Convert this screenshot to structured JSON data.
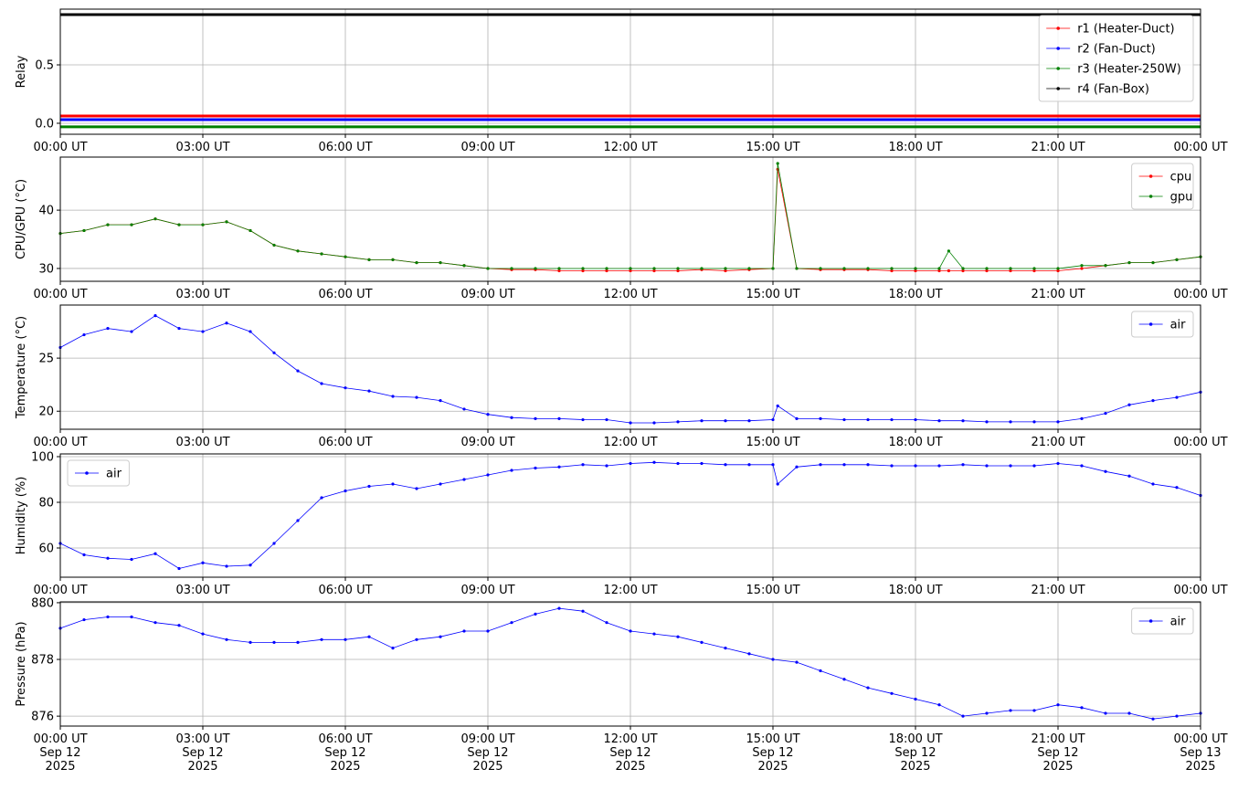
{
  "chart_data": [
    {
      "type": "line",
      "ylabel": "Relay",
      "x": [
        0,
        24
      ],
      "xlim": [
        0,
        24
      ],
      "xticks": [
        {
          "value": 0,
          "label": "00:00 UT"
        },
        {
          "value": 3,
          "label": "03:00 UT"
        },
        {
          "value": 6,
          "label": "06:00 UT"
        },
        {
          "value": 9,
          "label": "09:00 UT"
        },
        {
          "value": 12,
          "label": "12:00 UT"
        },
        {
          "value": 15,
          "label": "15:00 UT"
        },
        {
          "value": 18,
          "label": "18:00 UT"
        },
        {
          "value": 21,
          "label": "21:00 UT"
        },
        {
          "value": 24,
          "label": "00:00 UT"
        }
      ],
      "ylim": [
        -0.094,
        0.977
      ],
      "yticks": [
        {
          "value": 0,
          "label": "0.0"
        },
        {
          "value": 0.5,
          "label": "0.5"
        }
      ],
      "grid": true,
      "legend": "upper right",
      "series": [
        {
          "name": "r1 (Heater-Duct)",
          "color": "#ff0000",
          "values": [
            0.0625,
            0.0625
          ]
        },
        {
          "name": "r2 (Fan-Duct)",
          "color": "#0000ff",
          "values": [
            0.031,
            0.031
          ]
        },
        {
          "name": "r3 (Heater-250W)",
          "color": "#008000",
          "values": [
            -0.031,
            -0.031
          ]
        },
        {
          "name": "r4 (Fan-Box)",
          "color": "#000000",
          "values": [
            0.93,
            0.93
          ]
        }
      ]
    },
    {
      "type": "line",
      "ylabel": "CPU/GPU (°C)",
      "x": [
        0,
        0.5,
        1,
        1.5,
        2,
        2.5,
        3,
        3.5,
        4,
        4.5,
        5,
        5.5,
        6,
        6.5,
        7,
        7.5,
        8,
        8.5,
        9,
        9.5,
        10,
        10.5,
        11,
        11.5,
        12,
        12.5,
        13,
        13.5,
        14,
        14.5,
        15,
        15.1,
        15.5,
        16,
        16.5,
        17,
        17.5,
        18,
        18.5,
        18.7,
        19,
        19.5,
        20,
        20.5,
        21,
        21.5,
        22,
        22.5,
        23,
        23.5,
        24
      ],
      "xlim": [
        0,
        24
      ],
      "xticks": [
        {
          "value": 0,
          "label": "00:00 UT"
        },
        {
          "value": 3,
          "label": "03:00 UT"
        },
        {
          "value": 6,
          "label": "06:00 UT"
        },
        {
          "value": 9,
          "label": "09:00 UT"
        },
        {
          "value": 12,
          "label": "12:00 UT"
        },
        {
          "value": 15,
          "label": "15:00 UT"
        },
        {
          "value": 18,
          "label": "18:00 UT"
        },
        {
          "value": 21,
          "label": "21:00 UT"
        },
        {
          "value": 24,
          "label": "00:00 UT"
        }
      ],
      "ylim": [
        27.8,
        49.1
      ],
      "yticks": [
        30,
        40
      ],
      "grid": true,
      "legend": "upper right",
      "series": [
        {
          "name": "cpu",
          "color": "#ff0000",
          "values": [
            36,
            36.5,
            37.5,
            37.5,
            38.5,
            37.5,
            37.5,
            38,
            36.5,
            34,
            33,
            32.5,
            32,
            31.5,
            31.5,
            31,
            31,
            30.5,
            30,
            29.8,
            29.8,
            29.6,
            29.6,
            29.6,
            29.6,
            29.6,
            29.6,
            29.8,
            29.6,
            29.8,
            30,
            47,
            30,
            29.8,
            29.8,
            29.8,
            29.6,
            29.6,
            29.6,
            29.6,
            29.6,
            29.6,
            29.6,
            29.6,
            29.6,
            30,
            30.5,
            31,
            31,
            31.5,
            32
          ]
        },
        {
          "name": "gpu",
          "color": "#008000",
          "values": [
            36,
            36.5,
            37.5,
            37.5,
            38.5,
            37.5,
            37.5,
            38,
            36.5,
            34,
            33,
            32.5,
            32,
            31.5,
            31.5,
            31,
            31,
            30.5,
            30,
            30,
            30,
            30,
            30,
            30,
            30,
            30,
            30,
            30,
            30,
            30,
            30,
            48,
            30,
            30,
            30,
            30,
            30,
            30,
            30,
            33,
            30,
            30,
            30,
            30,
            30,
            30.5,
            30.5,
            31,
            31,
            31.5,
            32
          ]
        }
      ]
    },
    {
      "type": "line",
      "ylabel": "Temperature (°C)",
      "x": [
        0,
        0.5,
        1,
        1.5,
        2,
        2.5,
        3,
        3.5,
        4,
        4.5,
        5,
        5.5,
        6,
        6.5,
        7,
        7.5,
        8,
        8.5,
        9,
        9.5,
        10,
        10.5,
        11,
        11.5,
        12,
        12.5,
        13,
        13.5,
        14,
        14.5,
        15,
        15.1,
        15.5,
        16,
        16.5,
        17,
        17.5,
        18,
        18.5,
        19,
        19.5,
        20,
        20.5,
        21,
        21.5,
        22,
        22.5,
        23,
        23.5,
        24
      ],
      "xlim": [
        0,
        24
      ],
      "xticks": [
        {
          "value": 0,
          "label": "00:00 UT"
        },
        {
          "value": 3,
          "label": "03:00 UT"
        },
        {
          "value": 6,
          "label": "06:00 UT"
        },
        {
          "value": 9,
          "label": "09:00 UT"
        },
        {
          "value": 12,
          "label": "12:00 UT"
        },
        {
          "value": 15,
          "label": "15:00 UT"
        },
        {
          "value": 18,
          "label": "18:00 UT"
        },
        {
          "value": 21,
          "label": "21:00 UT"
        },
        {
          "value": 24,
          "label": "00:00 UT"
        }
      ],
      "ylim": [
        18.3,
        30
      ],
      "yticks": [
        20,
        25
      ],
      "grid": true,
      "legend": "upper right",
      "series": [
        {
          "name": "air",
          "color": "#0000ff",
          "values": [
            26,
            27.2,
            27.8,
            27.5,
            29,
            27.8,
            27.5,
            28.3,
            27.5,
            25.5,
            23.8,
            22.6,
            22.2,
            21.9,
            21.4,
            21.3,
            21,
            20.2,
            19.7,
            19.4,
            19.3,
            19.3,
            19.2,
            19.2,
            18.9,
            18.9,
            19,
            19.1,
            19.1,
            19.1,
            19.2,
            20.5,
            19.3,
            19.3,
            19.2,
            19.2,
            19.2,
            19.2,
            19.1,
            19.1,
            19,
            19,
            19,
            19,
            19.3,
            19.8,
            20.6,
            21,
            21.3,
            21.8
          ]
        }
      ]
    },
    {
      "type": "line",
      "ylabel": "Humidity (%)",
      "x": [
        0,
        0.5,
        1,
        1.5,
        2,
        2.5,
        3,
        3.5,
        4,
        4.5,
        5,
        5.5,
        6,
        6.5,
        7,
        7.5,
        8,
        8.5,
        9,
        9.5,
        10,
        10.5,
        11,
        11.5,
        12,
        12.5,
        13,
        13.5,
        14,
        14.5,
        15,
        15.1,
        15.5,
        16,
        16.5,
        17,
        17.5,
        18,
        18.5,
        19,
        19.5,
        20,
        20.5,
        21,
        21.5,
        22,
        22.5,
        23,
        23.5,
        24
      ],
      "xlim": [
        0,
        24
      ],
      "xticks": [
        {
          "value": 0,
          "label": "00:00 UT"
        },
        {
          "value": 3,
          "label": "03:00 UT"
        },
        {
          "value": 6,
          "label": "06:00 UT"
        },
        {
          "value": 9,
          "label": "09:00 UT"
        },
        {
          "value": 12,
          "label": "12:00 UT"
        },
        {
          "value": 15,
          "label": "15:00 UT"
        },
        {
          "value": 18,
          "label": "18:00 UT"
        },
        {
          "value": 21,
          "label": "21:00 UT"
        },
        {
          "value": 24,
          "label": "00:00 UT"
        }
      ],
      "ylim": [
        47.2,
        101.2
      ],
      "yticks": [
        60,
        80,
        100
      ],
      "grid": true,
      "legend": "upper left",
      "series": [
        {
          "name": "air",
          "color": "#0000ff",
          "values": [
            62,
            57,
            55.5,
            55,
            57.5,
            51,
            53.5,
            52,
            52.5,
            62,
            72,
            82,
            85,
            87,
            88,
            86,
            88,
            90,
            92,
            94,
            95,
            95.5,
            96.5,
            96,
            97,
            97.5,
            97,
            97,
            96.5,
            96.5,
            96.5,
            88,
            95.5,
            96.5,
            96.5,
            96.5,
            96,
            96,
            96,
            96.5,
            96,
            96,
            96,
            97,
            96,
            93.5,
            91.5,
            88,
            86.5,
            83
          ]
        }
      ]
    },
    {
      "type": "line",
      "ylabel": "Pressure (hPa)",
      "x": [
        0,
        0.5,
        1,
        1.5,
        2,
        2.5,
        3,
        3.5,
        4,
        4.5,
        5,
        5.5,
        6,
        6.5,
        7,
        7.5,
        8,
        8.5,
        9,
        9.5,
        10,
        10.5,
        11,
        11.5,
        12,
        12.5,
        13,
        13.5,
        14,
        14.5,
        15,
        15.5,
        16,
        16.5,
        17,
        17.5,
        18,
        18.5,
        19,
        19.5,
        20,
        20.5,
        21,
        21.5,
        22,
        22.5,
        23,
        23.5,
        24
      ],
      "xlim": [
        0,
        24
      ],
      "xticks": [
        {
          "value": 0,
          "label": "00:00 UT\nSep 12\n2025"
        },
        {
          "value": 3,
          "label": "03:00 UT\nSep 12\n2025"
        },
        {
          "value": 6,
          "label": "06:00 UT\nSep 12\n2025"
        },
        {
          "value": 9,
          "label": "09:00 UT\nSep 12\n2025"
        },
        {
          "value": 12,
          "label": "12:00 UT\nSep 12\n2025"
        },
        {
          "value": 15,
          "label": "15:00 UT\nSep 12\n2025"
        },
        {
          "value": 18,
          "label": "18:00 UT\nSep 12\n2025"
        },
        {
          "value": 21,
          "label": "21:00 UT\nSep 12\n2025"
        },
        {
          "value": 24,
          "label": "00:00 UT\nSep 13\n2025"
        }
      ],
      "ylim": [
        875.65,
        880.03
      ],
      "yticks": [
        876,
        878,
        880
      ],
      "grid": true,
      "legend": "upper right",
      "series": [
        {
          "name": "air",
          "color": "#0000ff",
          "values": [
            879.1,
            879.4,
            879.5,
            879.5,
            879.3,
            879.2,
            878.9,
            878.7,
            878.6,
            878.6,
            878.6,
            878.7,
            878.7,
            878.8,
            878.4,
            878.7,
            878.8,
            879,
            879,
            879.3,
            879.6,
            879.8,
            879.7,
            879.3,
            879,
            878.9,
            878.8,
            878.6,
            878.4,
            878.2,
            878,
            877.9,
            877.6,
            877.3,
            877,
            876.8,
            876.6,
            876.4,
            876,
            876.1,
            876.2,
            876.2,
            876.4,
            876.3,
            876.1,
            876.1,
            875.9,
            876,
            876.1
          ]
        }
      ]
    }
  ]
}
